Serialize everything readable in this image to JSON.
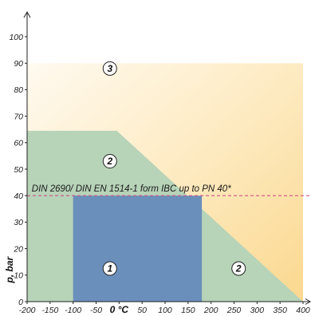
{
  "chart_data": {
    "type": "area",
    "xlabel": "0 °C",
    "ylabel": "p, bar",
    "xlim": [
      -200,
      400
    ],
    "ylim": [
      0,
      100
    ],
    "x_ticks": [
      -200,
      -150,
      -100,
      -50,
      0,
      50,
      100,
      150,
      200,
      250,
      300,
      350,
      400
    ],
    "x_tick_labels": [
      "-200",
      "-150",
      "-100",
      "-50",
      "0 °C",
      "50",
      "100",
      "150",
      "200",
      "250",
      "300",
      "350",
      "400"
    ],
    "y_ticks": [
      0,
      10,
      20,
      30,
      40,
      50,
      60,
      70,
      80,
      90,
      100
    ],
    "y_tick_labels": [
      "0",
      "10",
      "20",
      "30",
      "40",
      "50",
      "60",
      "70",
      "80",
      "90",
      "100"
    ],
    "grid": false,
    "reference_line": {
      "y": 40,
      "label": "DIN 2690/ DIN EN 1514-1 form IBC up to PN 40*",
      "color": "#d0508a"
    },
    "regions": [
      {
        "name": "3",
        "label_pos": [
          -20,
          88
        ],
        "color": "#fde8b8",
        "polygon": [
          [
            -200,
            90
          ],
          [
            400,
            90
          ],
          [
            400,
            0
          ],
          [
            -200,
            0
          ]
        ]
      },
      {
        "name": "2",
        "label_pos": [
          -20,
          53
        ],
        "label_pos_2": [
          260,
          12.5
        ],
        "color": "#b7d3b8",
        "polygon": [
          [
            -200,
            64.5
          ],
          [
            -5,
            64.5
          ],
          [
            400,
            0
          ],
          [
            -200,
            0
          ]
        ]
      },
      {
        "name": "1",
        "label_pos": [
          -20,
          12.5
        ],
        "color": "#6b8fbb",
        "polygon": [
          [
            -100,
            40
          ],
          [
            180,
            40
          ],
          [
            180,
            0
          ],
          [
            -100,
            0
          ]
        ]
      }
    ]
  }
}
